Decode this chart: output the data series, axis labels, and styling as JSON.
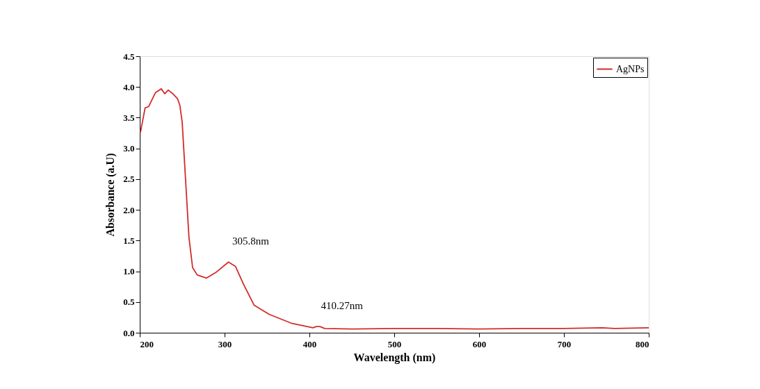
{
  "chart_data": {
    "type": "line",
    "xlabel": "Wavelength (nm)",
    "ylabel": "Absorbance (a.U)",
    "x": [
      200.8,
      206.3,
      210.4,
      218.6,
      225.4,
      229.5,
      233.6,
      239,
      244.5,
      247.3,
      250,
      254,
      258,
      262.3,
      267.8,
      278.7,
      289.6,
      304.6,
      312.8,
      322.3,
      334.7,
      352.5,
      379.7,
      404.3,
      408,
      412.5,
      418,
      450,
      500,
      550,
      600,
      650,
      700,
      745,
      760,
      800
    ],
    "series": [
      {
        "name": "AgNPs",
        "color": "#d42a2a",
        "values": [
          3.26,
          3.66,
          3.68,
          3.91,
          3.97,
          3.89,
          3.95,
          3.89,
          3.81,
          3.7,
          3.43,
          2.49,
          1.55,
          1.06,
          0.94,
          0.89,
          0.98,
          1.15,
          1.08,
          0.79,
          0.45,
          0.3,
          0.15,
          0.08,
          0.1,
          0.1,
          0.07,
          0.06,
          0.07,
          0.07,
          0.06,
          0.07,
          0.07,
          0.08,
          0.07,
          0.08
        ]
      }
    ],
    "annotations": [
      {
        "text": "305.8nm",
        "x": 305.8,
        "y": 1.15
      },
      {
        "text": "410.27nm",
        "x": 410.27,
        "y": 0.1
      }
    ],
    "xlim": [
      200,
      800
    ],
    "xticks": [
      200,
      300,
      400,
      500,
      600,
      700,
      800
    ],
    "ylim": [
      0,
      4.5
    ],
    "yticks": [
      {
        "value": 0,
        "label": "0.0"
      },
      0.5,
      {
        "value": 1,
        "label": "1.0"
      },
      1.5,
      {
        "value": 2,
        "label": "2.0"
      },
      2.5,
      {
        "value": 3,
        "label": "3.0"
      },
      3.5,
      {
        "value": 4,
        "label": "4.0"
      },
      4.5
    ],
    "grid": false,
    "legend": "top right",
    "marker": "none",
    "line_style": "solid"
  }
}
